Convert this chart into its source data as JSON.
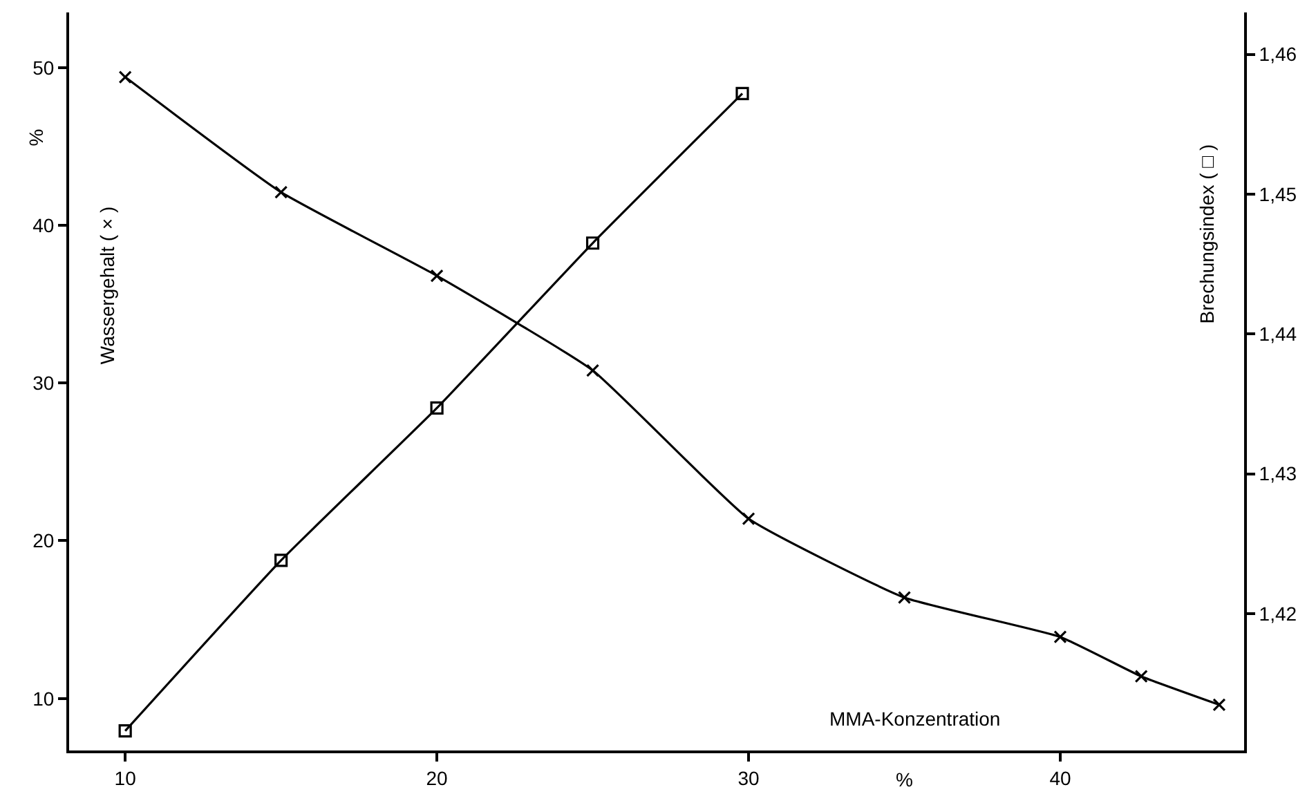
{
  "chart_data": {
    "type": "line",
    "xlabel": "MMA-Konzentration",
    "ylabel": "Wassergehalt ( × )",
    "y2label": "Brechungsindex ( □ )",
    "annotations": [
      "%",
      "%"
    ],
    "series": [
      {
        "color": "#000000",
        "marker": "cross",
        "x": [
          10,
          15,
          20,
          25,
          30,
          35,
          40,
          42.6,
          45.1
        ],
        "values": [
          49.4,
          42.1,
          36.8,
          30.8,
          21.4,
          16.4,
          13.9,
          11.4,
          9.6
        ]
      },
      {
        "color": "#000000",
        "marker": "square",
        "axis": "y2",
        "x": [
          10,
          15,
          20,
          25,
          29.8
        ],
        "values": [
          1.4116,
          1.4238,
          1.4347,
          1.4465,
          1.4572
        ]
      }
    ],
    "xlim": [
      8.2,
      45.9
    ],
    "xticks": [
      10,
      20,
      30,
      40
    ],
    "ylim": [
      6.7,
      53.5
    ],
    "yticks": [
      10,
      20,
      30,
      40,
      50
    ],
    "y2lim": [
      1.4102,
      1.463
    ],
    "y2ticks": [
      {
        "value": 1.42,
        "label": "1,42"
      },
      {
        "value": 1.43,
        "label": "1,43"
      },
      {
        "value": 1.44,
        "label": "1,44"
      },
      {
        "value": 1.45,
        "label": "1,45"
      },
      {
        "value": 1.46,
        "label": "1,46"
      }
    ],
    "line_style": "solid"
  }
}
